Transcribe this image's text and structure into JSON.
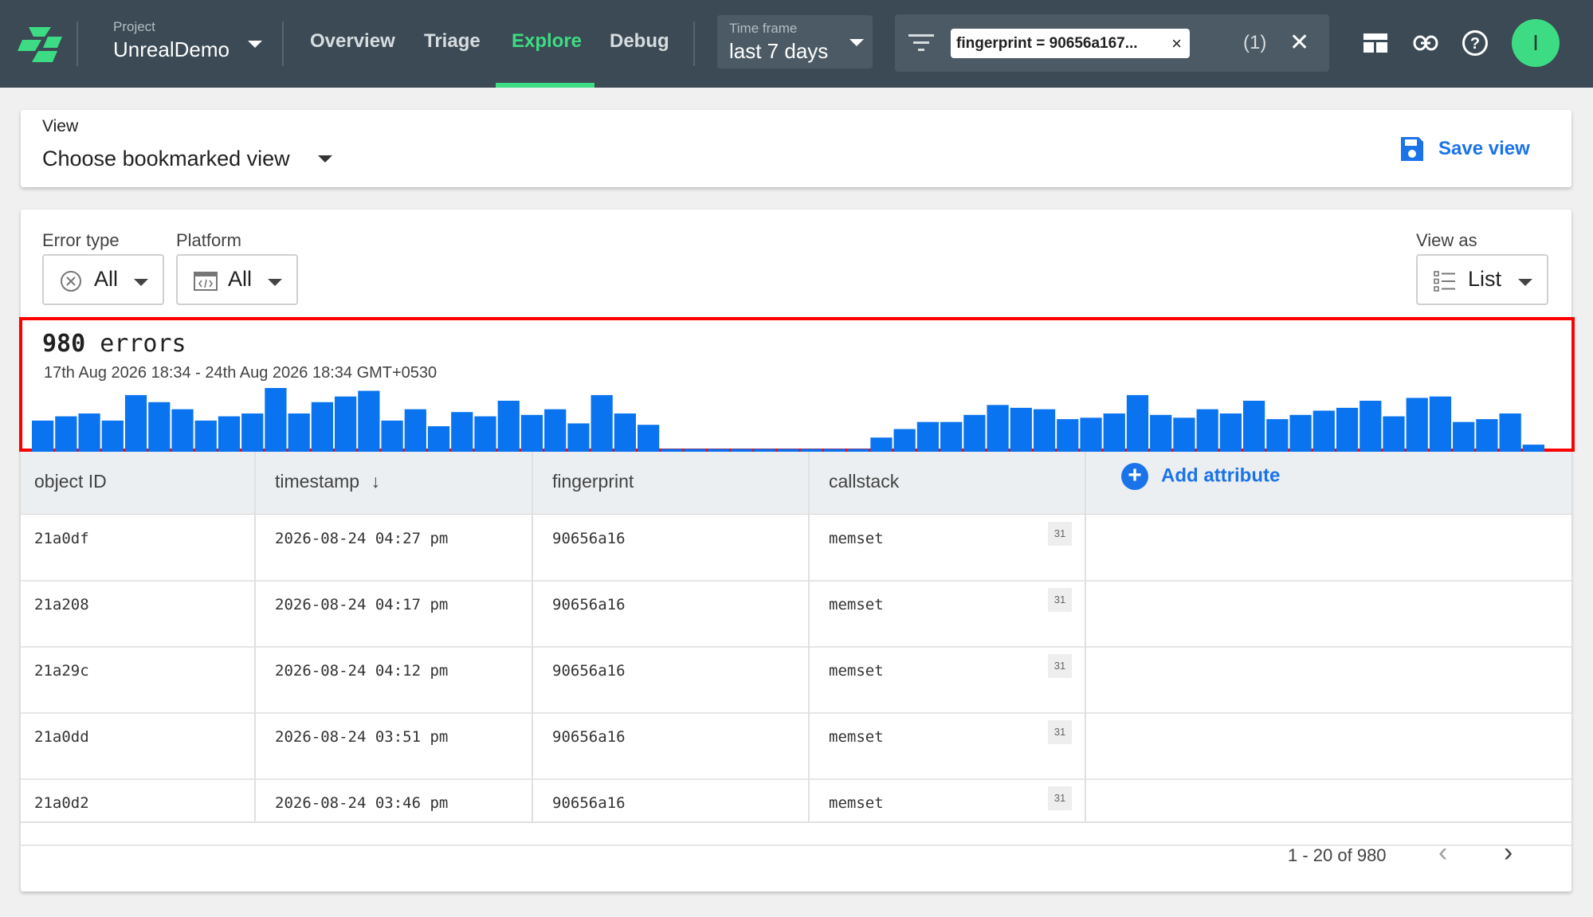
{
  "header": {
    "project_label": "Project",
    "project_name": "UnrealDemo",
    "tabs": [
      {
        "label": "Overview",
        "active": false
      },
      {
        "label": "Triage",
        "active": false
      },
      {
        "label": "Explore",
        "active": true
      },
      {
        "label": "Debug",
        "active": false
      }
    ],
    "timeframe_label": "Time frame",
    "timeframe_value": "last 7 days",
    "filter_chip": "fingerprint = 90656a167...",
    "filter_count": "(1)",
    "avatar_initial": "I",
    "icons": [
      "backtrace-logo-icon",
      "filter-icon",
      "close-icon",
      "layout-icon",
      "link-icon",
      "help-icon"
    ]
  },
  "view": {
    "label": "View",
    "choose": "Choose bookmarked view",
    "save": "Save view"
  },
  "filters": {
    "error_type_label": "Error type",
    "error_type_value": "All",
    "platform_label": "Platform",
    "platform_value": "All",
    "view_as_label": "View as",
    "view_as_value": "List"
  },
  "summary": {
    "count": "980",
    "unit": "errors",
    "range": "17th Aug 2026 18:34 - 24th Aug 2026 18:34 GMT+0530"
  },
  "chart_data": {
    "type": "bar",
    "color": "#0a73f0",
    "values": [
      22,
      25,
      27,
      22,
      40,
      35,
      30,
      22,
      25,
      27,
      45,
      27,
      35,
      39,
      43,
      22,
      30,
      18,
      28,
      25,
      36,
      26,
      30,
      20,
      40,
      27,
      19,
      2,
      2,
      2,
      2,
      2,
      2,
      2,
      2,
      2,
      10,
      16,
      21,
      21,
      26,
      33,
      31,
      30,
      23,
      24,
      27,
      40,
      26,
      24,
      30,
      27,
      36,
      23,
      26,
      29,
      31,
      36,
      25,
      38,
      39,
      21,
      23,
      27,
      5
    ]
  },
  "table": {
    "columns": [
      "object ID",
      "timestamp",
      "fingerprint",
      "callstack"
    ],
    "sort_indicator": "↓",
    "add_attribute": "Add attribute",
    "rows": [
      {
        "id": "21a0df",
        "timestamp": "2026-08-24 04:27 pm",
        "fingerprint": "90656a16",
        "callstack": "memset",
        "frames": "31"
      },
      {
        "id": "21a208",
        "timestamp": "2026-08-24 04:17 pm",
        "fingerprint": "90656a16",
        "callstack": "memset",
        "frames": "31"
      },
      {
        "id": "21a29c",
        "timestamp": "2026-08-24 04:12 pm",
        "fingerprint": "90656a16",
        "callstack": "memset",
        "frames": "31"
      },
      {
        "id": "21a0dd",
        "timestamp": "2026-08-24 03:51 pm",
        "fingerprint": "90656a16",
        "callstack": "memset",
        "frames": "31"
      },
      {
        "id": "21a0d2",
        "timestamp": "2026-08-24 03:46 pm",
        "fingerprint": "90656a16",
        "callstack": "memset",
        "frames": "31"
      }
    ]
  },
  "pagination": {
    "text": "1 - 20 of 980"
  }
}
